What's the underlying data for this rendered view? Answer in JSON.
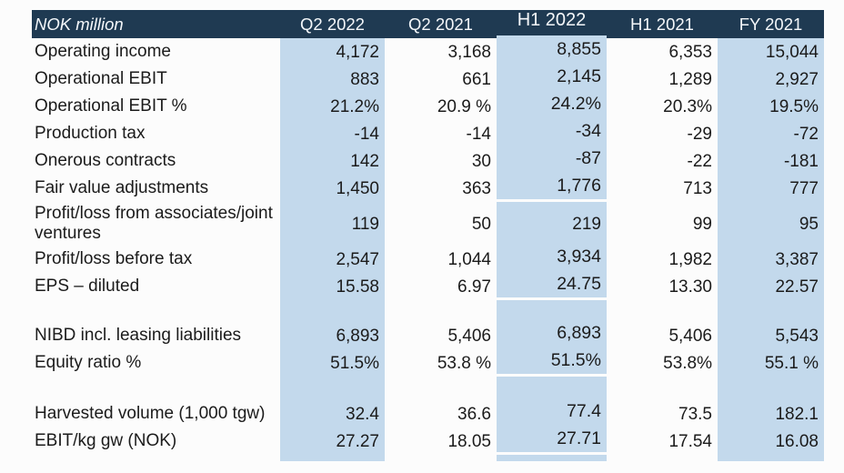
{
  "table": {
    "unit_label": "NOK million",
    "columns": [
      "Q2 2022",
      "Q2 2021",
      "H1 2022",
      "H1 2021",
      "FY 2021"
    ],
    "shaded_columns": [
      "Q2 2022",
      "H1 2022",
      "FY 2021"
    ],
    "rows": [
      {
        "kind": "data",
        "label": "Operating income",
        "values": [
          "4,172",
          "3,168",
          "8,855",
          "6,353",
          "15,044"
        ]
      },
      {
        "kind": "data",
        "label": "Operational EBIT",
        "values": [
          "883",
          "661",
          "2,145",
          "1,289",
          "2,927"
        ]
      },
      {
        "kind": "data",
        "label": "Operational EBIT %",
        "values": [
          "21.2%",
          "20.9 %",
          "24.2%",
          "20.3%",
          "19.5%"
        ]
      },
      {
        "kind": "data",
        "label": "Production tax",
        "values": [
          "-14",
          "-14",
          "-34",
          "-29",
          "-72"
        ]
      },
      {
        "kind": "data",
        "label": "Onerous contracts",
        "values": [
          "142",
          "30",
          "-87",
          "-22",
          "-181"
        ]
      },
      {
        "kind": "data",
        "label": "Fair value adjustments",
        "values": [
          "1,450",
          "363",
          "1,776",
          "713",
          "777"
        ]
      },
      {
        "kind": "tall",
        "label": "Profit/loss from associates/joint ventures",
        "values": [
          "119",
          "50",
          "219",
          "99",
          "95"
        ]
      },
      {
        "kind": "data",
        "label": "Profit/loss before tax",
        "values": [
          "2,547",
          "1,044",
          "3,934",
          "1,982",
          "3,387"
        ]
      },
      {
        "kind": "data",
        "label": "EPS – diluted",
        "values": [
          "15.58",
          "6.97",
          "24.75",
          "13.30",
          "22.57"
        ]
      },
      {
        "kind": "spacer-sm",
        "label": "",
        "values": [
          "",
          "",
          "",
          "",
          ""
        ]
      },
      {
        "kind": "data",
        "label": "NIBD incl. leasing liabilities",
        "values": [
          "6,893",
          "5,406",
          "6,893",
          "5,406",
          "5,543"
        ]
      },
      {
        "kind": "data",
        "label": "Equity ratio %",
        "values": [
          "51.5%",
          "53.8 %",
          "51.5%",
          "53.8%",
          "55.1 %"
        ]
      },
      {
        "kind": "spacer-md",
        "label": "",
        "values": [
          "",
          "",
          "",
          "",
          ""
        ]
      },
      {
        "kind": "data",
        "label": "Harvested volume (1,000 tgw)",
        "values": [
          "32.4",
          "36.6",
          "77.4",
          "73.5",
          "182.1"
        ]
      },
      {
        "kind": "data",
        "label": "EBIT/kg gw (NOK)",
        "values": [
          "27.27",
          "18.05",
          "27.71",
          "17.54",
          "16.08"
        ]
      },
      {
        "kind": "tail",
        "label": "",
        "values": [
          "",
          "",
          "",
          "",
          ""
        ]
      }
    ],
    "colors": {
      "header_bg": "#1f3a52",
      "header_text": "#f4f7fa",
      "shaded_column_bg": "#c3d9ec",
      "body_text": "#1b1b1b",
      "page_bg": "#fcfcfc"
    }
  }
}
